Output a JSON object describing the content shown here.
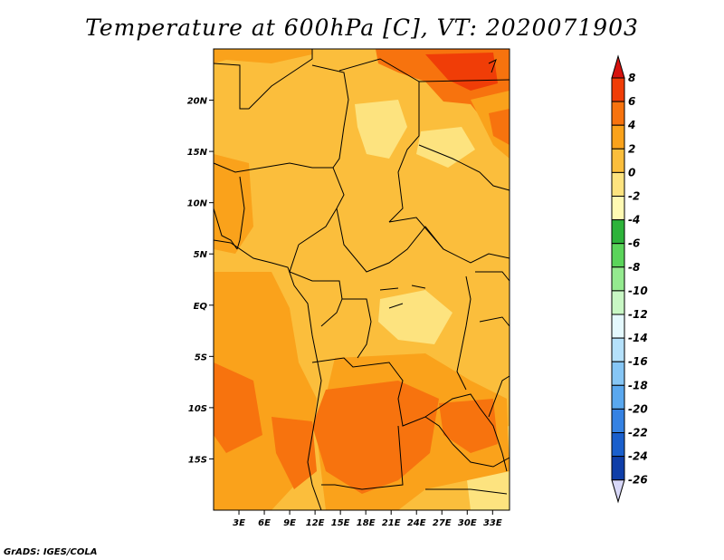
{
  "title": "Temperature at 600hPa [C], VT: 2020071903",
  "credit": "GrADS: IGES/COLA",
  "map": {
    "lat_ticks": [
      "20N",
      "15N",
      "10N",
      "5N",
      "EQ",
      "5S",
      "10S",
      "15S"
    ],
    "lat_values": [
      20,
      15,
      10,
      5,
      0,
      -5,
      -10,
      -15
    ],
    "lon_ticks": [
      "3E",
      "6E",
      "9E",
      "12E",
      "15E",
      "18E",
      "21E",
      "24E",
      "27E",
      "30E",
      "33E"
    ],
    "lon_values": [
      3,
      6,
      9,
      12,
      15,
      18,
      21,
      24,
      27,
      30,
      33
    ],
    "lat_range": [
      -20,
      25
    ],
    "lon_range": [
      0,
      35
    ]
  },
  "colorbar": {
    "labels": [
      "8",
      "6",
      "4",
      "2",
      "0",
      "-2",
      "-4",
      "-6",
      "-8",
      "-10",
      "-12",
      "-14",
      "-16",
      "-18",
      "-20",
      "-22",
      "-24",
      "-26"
    ],
    "colors": [
      "#d6120e",
      "#f03d07",
      "#f7730e",
      "#faa21b",
      "#fbbe3c",
      "#fde37f",
      "#fff9b3",
      "#2db33a",
      "#5ad45a",
      "#94ea8f",
      "#c8f7c4",
      "#e4f8fd",
      "#b5e1fb",
      "#86c6f5",
      "#5aa8ef",
      "#3582e3",
      "#1a5fcc",
      "#0f3ea8",
      "#0a1f78",
      "#d8d8f8"
    ]
  }
}
